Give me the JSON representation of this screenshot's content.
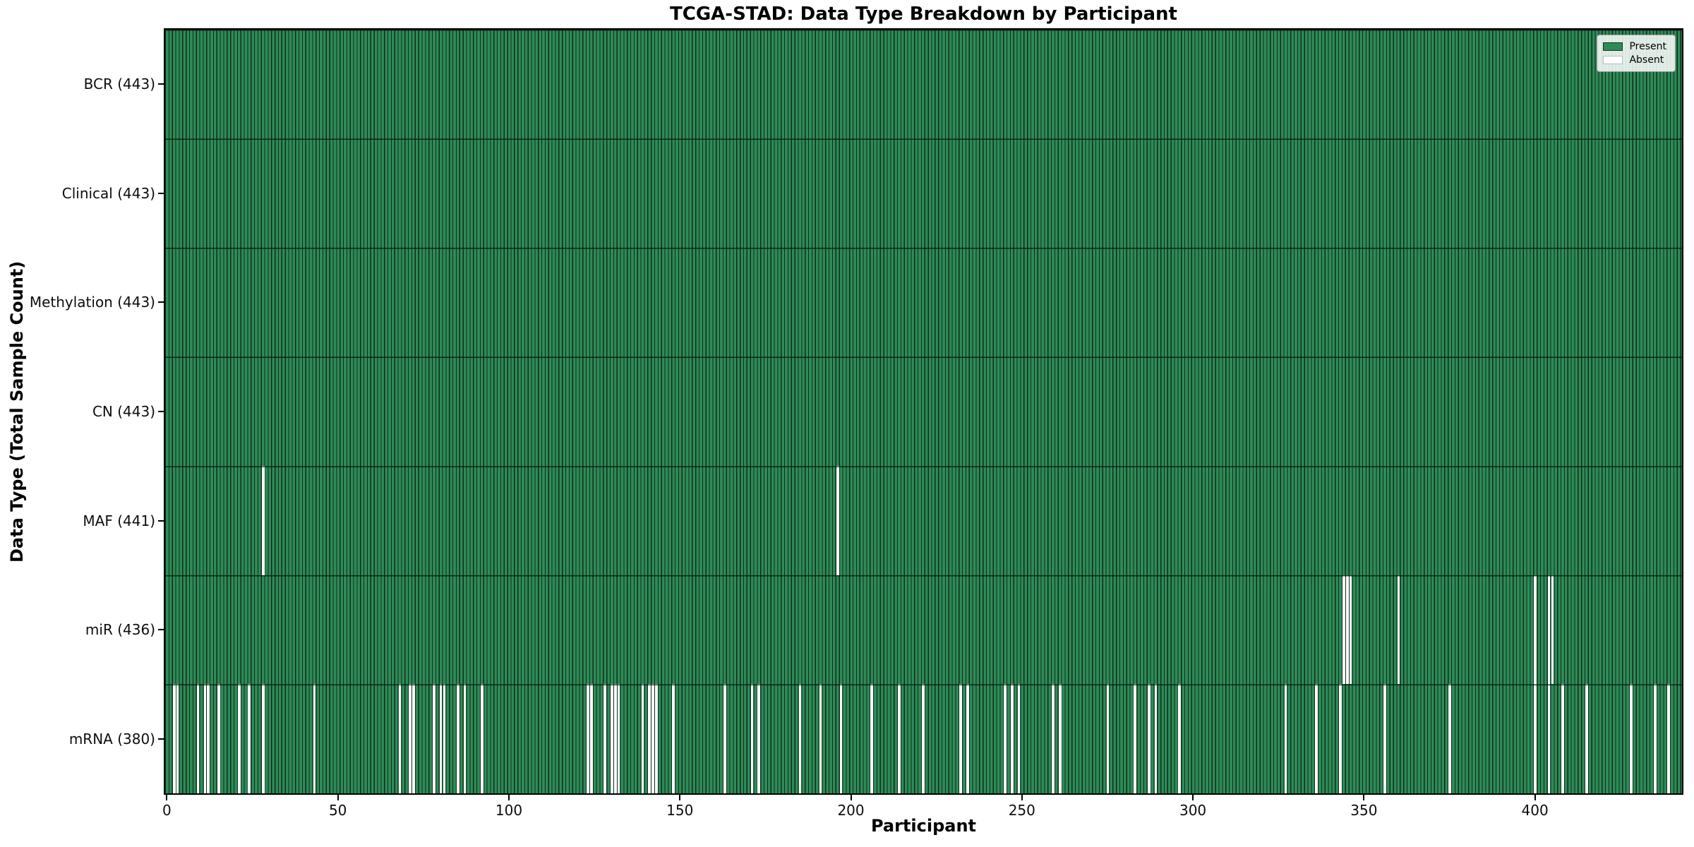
{
  "chart_data": {
    "type": "heatmap",
    "title": "TCGA-STAD: Data Type Breakdown by Participant",
    "xlabel": "Participant",
    "ylabel": "Data Type (Total Sample Count)",
    "n_participants": 443,
    "x_ticks": [
      0,
      50,
      100,
      150,
      200,
      250,
      300,
      350,
      400
    ],
    "x_range": [
      0,
      443
    ],
    "grid": false,
    "colors": {
      "present": "#2e8b57",
      "absent": "#ffffff",
      "bar_edge": "#0f2c1b",
      "spine": "#000000"
    },
    "legend": {
      "position": "upper right",
      "entries": [
        {
          "label": "Present",
          "color": "#2e8b57",
          "edge": "#14321f"
        },
        {
          "label": "Absent",
          "color": "#ffffff",
          "edge": "#bbbbbb"
        }
      ]
    },
    "rows": [
      {
        "label": "BCR (443)",
        "data_type": "BCR",
        "present_count": 443,
        "absent_participants": []
      },
      {
        "label": "Clinical (443)",
        "data_type": "Clinical",
        "present_count": 443,
        "absent_participants": []
      },
      {
        "label": "Methylation (443)",
        "data_type": "Methylation",
        "present_count": 443,
        "absent_participants": []
      },
      {
        "label": "CN (443)",
        "data_type": "CN",
        "present_count": 443,
        "absent_participants": []
      },
      {
        "label": "MAF (441)",
        "data_type": "MAF",
        "present_count": 441,
        "absent_participants": [
          28,
          196
        ]
      },
      {
        "label": "miR (436)",
        "data_type": "miR",
        "present_count": 436,
        "absent_participants": [
          344,
          345,
          346,
          360,
          400,
          404,
          405
        ]
      },
      {
        "label": "mRNA (380)",
        "data_type": "mRNA",
        "present_count": 380,
        "absent_participants": [
          2,
          3,
          9,
          11,
          12,
          15,
          21,
          24,
          28,
          43,
          68,
          71,
          72,
          78,
          80,
          81,
          85,
          87,
          92,
          123,
          124,
          128,
          130,
          131,
          132,
          139,
          141,
          142,
          143,
          148,
          163,
          171,
          173,
          185,
          191,
          197,
          206,
          214,
          221,
          232,
          234,
          245,
          247,
          249,
          259,
          261,
          275,
          283,
          287,
          289,
          296,
          327,
          336,
          343,
          356,
          375,
          400,
          404,
          408,
          415,
          428,
          435,
          439
        ]
      }
    ]
  }
}
